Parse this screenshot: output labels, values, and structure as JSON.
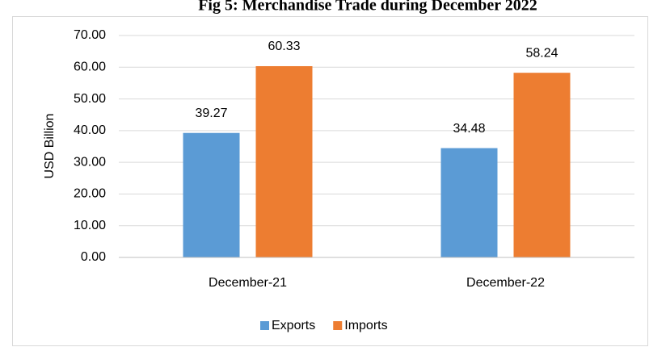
{
  "chart_data": {
    "type": "bar",
    "title": "Fig 5: Merchandise Trade during December 2022",
    "ylabel": "USD Billion",
    "categories": [
      "December-21",
      "December-22"
    ],
    "series": [
      {
        "name": "Exports",
        "color": "#5b9bd5",
        "values": [
          39.27,
          34.48
        ]
      },
      {
        "name": "Imports",
        "color": "#ed7d31",
        "values": [
          60.33,
          58.24
        ]
      }
    ],
    "ylim": [
      0,
      70
    ],
    "yticks": [
      {
        "value": 0,
        "label": "0.00"
      },
      {
        "value": 10,
        "label": "10.00"
      },
      {
        "value": 20,
        "label": "20.00"
      },
      {
        "value": 30,
        "label": "30.00"
      },
      {
        "value": 40,
        "label": "40.00"
      },
      {
        "value": 50,
        "label": "50.00"
      },
      {
        "value": 60,
        "label": "60.00"
      },
      {
        "value": 70,
        "label": "70.00"
      }
    ],
    "grid": true,
    "legend": "bottom"
  }
}
